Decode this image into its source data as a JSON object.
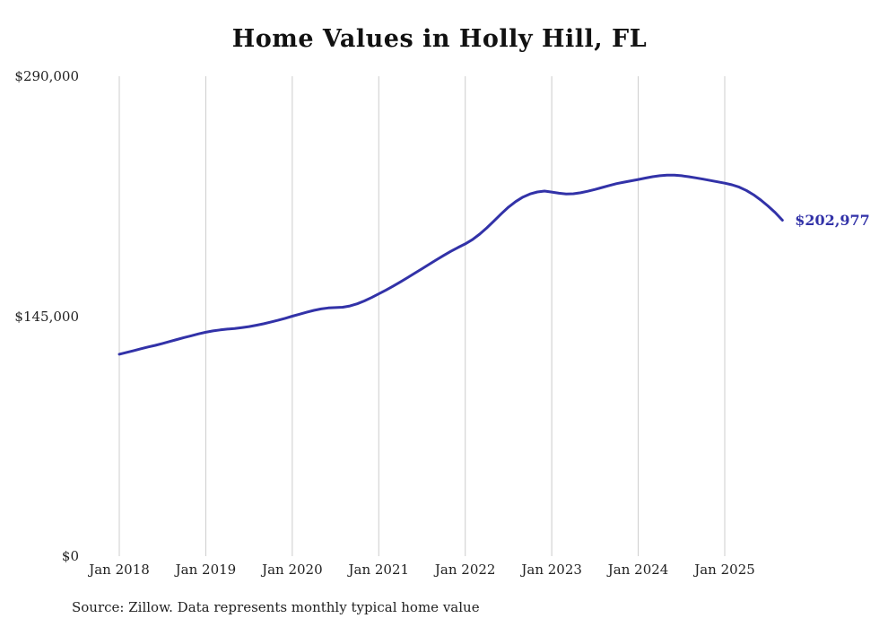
{
  "title": "Home Values in Holly Hill, FL",
  "source_note": "Source: Zillow. Data represents monthly typical home value",
  "end_label": "$202,977",
  "colors": {
    "line": "#3232a8",
    "grid": "#cccccc",
    "text": "#222222",
    "end_label": "#3232a8"
  },
  "chart_data": {
    "type": "line",
    "title": "Home Values in Holly Hill, FL",
    "series_name": "Typical home value",
    "ylim": [
      0,
      290000
    ],
    "grid": "vertical-only",
    "legend": "none",
    "yticks": [
      {
        "value": 0,
        "label": "$0"
      },
      {
        "value": 145000,
        "label": "$145,000"
      },
      {
        "value": 290000,
        "label": "$290,000"
      }
    ],
    "xticks": [
      {
        "index": 0,
        "label": "Jan 2018"
      },
      {
        "index": 12,
        "label": "Jan 2019"
      },
      {
        "index": 24,
        "label": "Jan 2020"
      },
      {
        "index": 36,
        "label": "Jan 2021"
      },
      {
        "index": 48,
        "label": "Jan 2022"
      },
      {
        "index": 60,
        "label": "Jan 2023"
      },
      {
        "index": 72,
        "label": "Jan 2024"
      },
      {
        "index": 84,
        "label": "Jan 2025"
      }
    ],
    "x": [
      "2018-01",
      "2018-02",
      "2018-03",
      "2018-04",
      "2018-05",
      "2018-06",
      "2018-07",
      "2018-08",
      "2018-09",
      "2018-10",
      "2018-11",
      "2018-12",
      "2019-01",
      "2019-02",
      "2019-03",
      "2019-04",
      "2019-05",
      "2019-06",
      "2019-07",
      "2019-08",
      "2019-09",
      "2019-10",
      "2019-11",
      "2019-12",
      "2020-01",
      "2020-02",
      "2020-03",
      "2020-04",
      "2020-05",
      "2020-06",
      "2020-07",
      "2020-08",
      "2020-09",
      "2020-10",
      "2020-11",
      "2020-12",
      "2021-01",
      "2021-02",
      "2021-03",
      "2021-04",
      "2021-05",
      "2021-06",
      "2021-07",
      "2021-08",
      "2021-09",
      "2021-10",
      "2021-11",
      "2021-12",
      "2022-01",
      "2022-02",
      "2022-03",
      "2022-04",
      "2022-05",
      "2022-06",
      "2022-07",
      "2022-08",
      "2022-09",
      "2022-10",
      "2022-11",
      "2022-12",
      "2023-01",
      "2023-02",
      "2023-03",
      "2023-04",
      "2023-05",
      "2023-06",
      "2023-07",
      "2023-08",
      "2023-09",
      "2023-10",
      "2023-11",
      "2023-12",
      "2024-01",
      "2024-02",
      "2024-03",
      "2024-04",
      "2024-05",
      "2024-06",
      "2024-07",
      "2024-08",
      "2024-09",
      "2024-10",
      "2024-11",
      "2024-12",
      "2025-01",
      "2025-02",
      "2025-03",
      "2025-04",
      "2025-05",
      "2025-06",
      "2025-07",
      "2025-08",
      "2025-09"
    ],
    "values": [
      122000,
      123100,
      124200,
      125300,
      126400,
      127400,
      128500,
      129700,
      130900,
      132100,
      133200,
      134300,
      135300,
      136100,
      136700,
      137200,
      137600,
      138100,
      138700,
      139500,
      140400,
      141400,
      142500,
      143700,
      145000,
      146200,
      147400,
      148500,
      149400,
      150000,
      150200,
      150400,
      151200,
      152500,
      154200,
      156300,
      158500,
      160800,
      163200,
      165700,
      168300,
      171000,
      173700,
      176400,
      179100,
      181700,
      184200,
      186500,
      188700,
      191300,
      194600,
      198400,
      202600,
      206900,
      210900,
      214300,
      217000,
      218900,
      220100,
      220600,
      220000,
      219300,
      218900,
      219000,
      219600,
      220500,
      221600,
      222800,
      224000,
      225100,
      226000,
      226800,
      227600,
      228500,
      229300,
      229900,
      230200,
      230200,
      229900,
      229300,
      228600,
      227800,
      227000,
      226200,
      225400,
      224400,
      223000,
      221000,
      218400,
      215200,
      211600,
      207600,
      202977
    ]
  }
}
